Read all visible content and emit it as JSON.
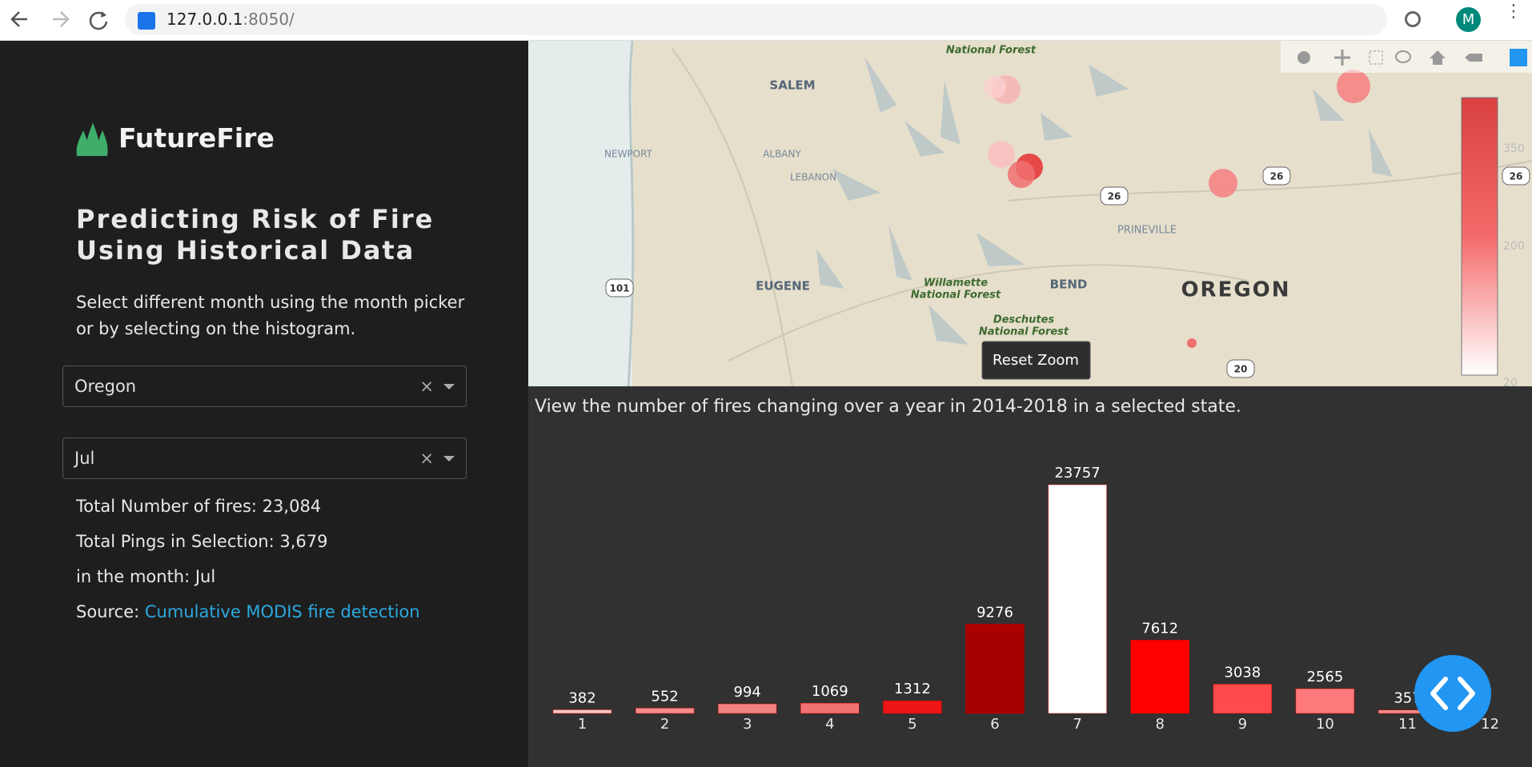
{
  "browser": {
    "url_host": "127.0.0.1",
    "url_path": ":8050/",
    "avatar": "M"
  },
  "sidebar": {
    "brand": "FutureFire",
    "heading_lines": [
      "Predicting Risk of Fire",
      "Using Historical Data"
    ],
    "description": "Select different month using the month picker or by selecting on the histogram.",
    "state_dropdown": "Oregon",
    "month_dropdown": "Jul",
    "stats": [
      "Total Number of fires: 23,084",
      "Total Pings in Selection: 3,679",
      "in the month: Jul"
    ],
    "source_label": "Source:",
    "source_link": "Cumulative MODIS fire detection"
  },
  "map": {
    "labels": [
      "SALEM",
      "NEWPORT",
      "ALBANY",
      "LEBANON",
      "EUGENE",
      "PRINEVILLE",
      "BEND",
      "OREGON",
      "Willamette",
      "National Forest",
      "Deschutes",
      "National Forest",
      "National Forest"
    ],
    "shields": [
      "101",
      "26",
      "26",
      "26",
      "20"
    ],
    "reset_button": "Reset Zoom",
    "colorbar_ticks": [
      "350",
      "200",
      "20"
    ]
  },
  "chart_data": {
    "type": "bar",
    "caption": "View the number of fires changing over a year in 2014-2018 in a selected state.",
    "categories": [
      "1",
      "2",
      "3",
      "4",
      "5",
      "6",
      "7",
      "8",
      "9",
      "10",
      "11",
      "12"
    ],
    "values": [
      382,
      552,
      994,
      1069,
      1312,
      9276,
      23757,
      7612,
      3038,
      2565,
      357,
      null
    ],
    "colors": [
      "#f5c4c4",
      "#f48a8a",
      "#f28282",
      "#f27272",
      "#ee1515",
      "#a80000",
      "#ffffff",
      "#ff0000",
      "#ff4b4b",
      "#ff7a7a",
      "#f28a8a",
      "#f5c4c4"
    ]
  }
}
